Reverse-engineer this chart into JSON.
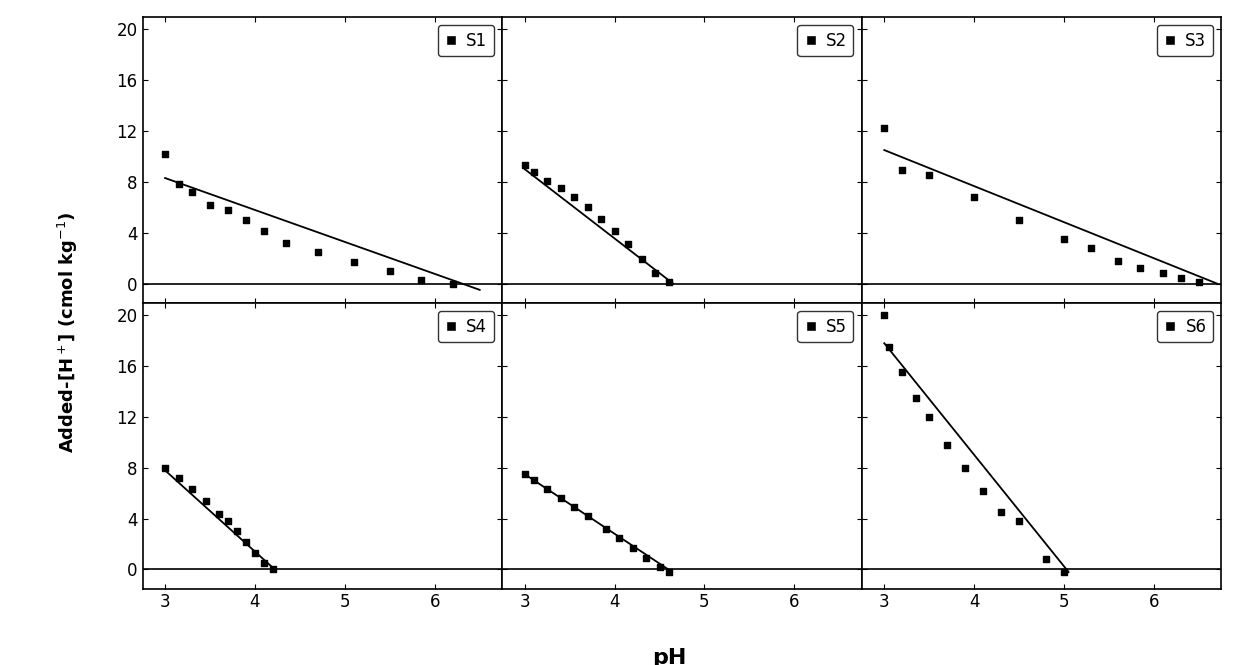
{
  "subplots": [
    {
      "label": "S1",
      "scatter_x": [
        3.0,
        3.15,
        3.3,
        3.5,
        3.7,
        3.9,
        4.1,
        4.35,
        4.7,
        5.1,
        5.5,
        5.85,
        6.2
      ],
      "scatter_y": [
        10.2,
        7.8,
        7.2,
        6.2,
        5.8,
        5.0,
        4.1,
        3.2,
        2.5,
        1.7,
        1.0,
        0.3,
        0.0
      ],
      "fit_x": [
        3.0,
        6.5
      ],
      "fit_y": [
        8.3,
        -0.5
      ]
    },
    {
      "label": "S2",
      "scatter_x": [
        3.0,
        3.1,
        3.25,
        3.4,
        3.55,
        3.7,
        3.85,
        4.0,
        4.15,
        4.3,
        4.45,
        4.6
      ],
      "scatter_y": [
        9.3,
        8.8,
        8.1,
        7.5,
        6.8,
        6.0,
        5.1,
        4.1,
        3.1,
        1.9,
        0.8,
        0.1
      ],
      "fit_x": [
        3.0,
        4.65
      ],
      "fit_y": [
        9.0,
        0.0
      ]
    },
    {
      "label": "S3",
      "scatter_x": [
        3.0,
        3.2,
        3.5,
        4.0,
        4.5,
        5.0,
        5.3,
        5.6,
        5.85,
        6.1,
        6.3,
        6.5
      ],
      "scatter_y": [
        12.2,
        8.9,
        8.5,
        6.8,
        5.0,
        3.5,
        2.8,
        1.8,
        1.2,
        0.8,
        0.4,
        0.1
      ],
      "fit_x": [
        3.0,
        6.7
      ],
      "fit_y": [
        10.5,
        0.0
      ]
    },
    {
      "label": "S4",
      "scatter_x": [
        3.0,
        3.15,
        3.3,
        3.45,
        3.6,
        3.7,
        3.8,
        3.9,
        4.0,
        4.1,
        4.2
      ],
      "scatter_y": [
        8.0,
        7.2,
        6.3,
        5.4,
        4.4,
        3.8,
        3.0,
        2.2,
        1.3,
        0.5,
        0.0
      ],
      "fit_x": [
        3.0,
        4.22
      ],
      "fit_y": [
        7.8,
        0.0
      ]
    },
    {
      "label": "S5",
      "scatter_x": [
        3.0,
        3.1,
        3.25,
        3.4,
        3.55,
        3.7,
        3.9,
        4.05,
        4.2,
        4.35,
        4.5,
        4.6
      ],
      "scatter_y": [
        7.5,
        7.0,
        6.3,
        5.6,
        4.9,
        4.2,
        3.2,
        2.5,
        1.7,
        0.9,
        0.2,
        -0.2
      ],
      "fit_x": [
        3.0,
        4.62
      ],
      "fit_y": [
        7.5,
        -0.1
      ]
    },
    {
      "label": "S6",
      "scatter_x": [
        3.0,
        3.05,
        3.2,
        3.35,
        3.5,
        3.7,
        3.9,
        4.1,
        4.3,
        4.5,
        4.8,
        5.0
      ],
      "scatter_y": [
        20.0,
        17.5,
        15.5,
        13.5,
        12.0,
        9.8,
        8.0,
        6.2,
        4.5,
        3.8,
        0.8,
        -0.2
      ],
      "fit_x": [
        3.0,
        5.05
      ],
      "fit_y": [
        17.8,
        -0.2
      ]
    }
  ],
  "ylim": [
    -1.5,
    21
  ],
  "yticks": [
    0,
    4,
    8,
    12,
    16,
    20
  ],
  "xlim": [
    2.75,
    6.75
  ],
  "xticks": [
    3,
    4,
    5,
    6
  ],
  "ylabel": "Added-[H$^+$] (cmol kg$^{-1}$)",
  "xlabel": "pH",
  "marker": "s",
  "marker_size": 25,
  "line_color": "black",
  "marker_color": "black",
  "background_color": "white",
  "tick_labelsize": 12,
  "legend_fontsize": 12,
  "ylabel_fontsize": 13,
  "xlabel_fontsize": 16
}
